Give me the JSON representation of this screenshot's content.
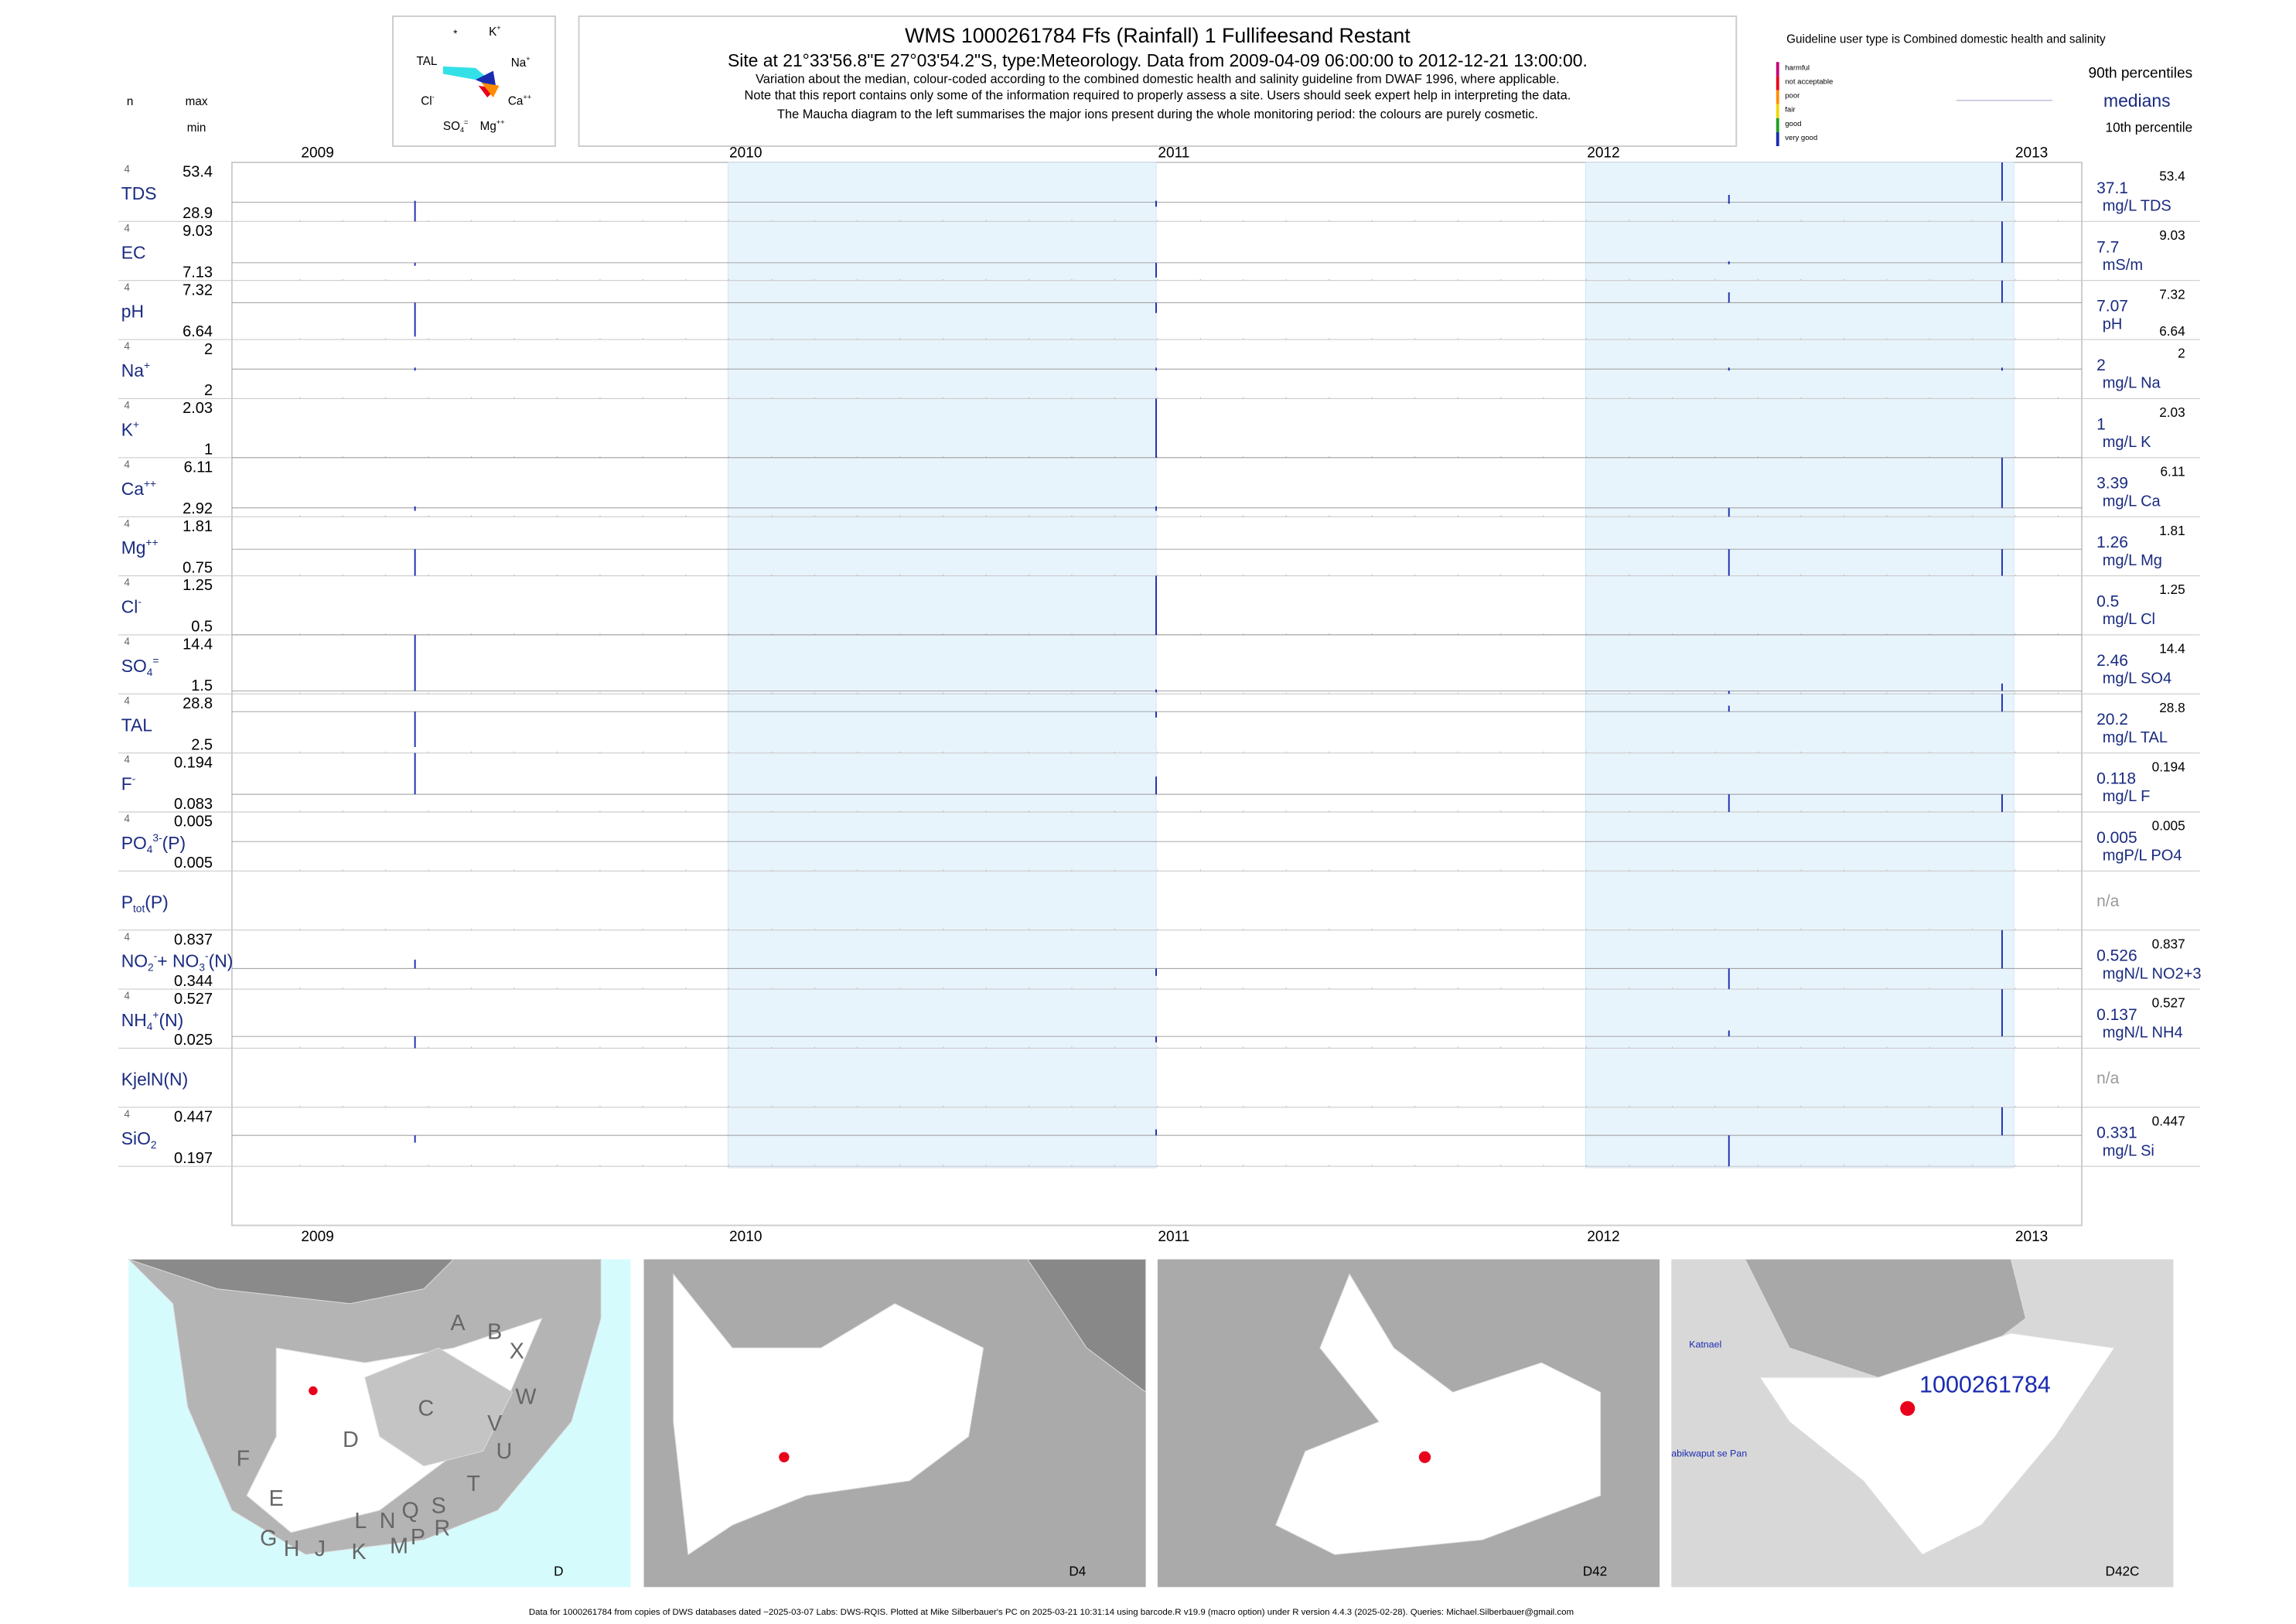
{
  "header": {
    "title": "WMS 1000261784  Ffs (Rainfall) 1 Fullifeesand Restant",
    "subtitle": "Site at 21°33'56.8\"E 27°03'54.2\"S, type:Meteorology.  Data from 2009-04-09 06:00:00 to 2012-12-21 13:00:00.",
    "notes": [
      "Variation about the median,  colour-coded according to the combined domestic health and salinity guideline from DWAF 1996, where applicable.",
      "Note that this report contains only some of the information required to properly assess a site. Users should seek expert help in interpreting the data.",
      "The Maucha diagram to the left summarises the major ions present during the whole monitoring period: the colours are purely cosmetic."
    ]
  },
  "maucha": [
    [
      {
        "text": "*"
      }
    ],
    [
      {
        "text": "K"
      },
      {
        "sup": "+"
      }
    ],
    [
      {
        "text": "TAL"
      }
    ],
    [
      {
        "text": "Na"
      },
      {
        "sup": "+"
      }
    ],
    [
      {
        "text": "Cl"
      },
      {
        "sup": "-"
      }
    ],
    [
      {
        "text": "Ca"
      },
      {
        "sup": "++"
      }
    ],
    [
      {
        "text": "SO"
      },
      {
        "sub": "4"
      },
      {
        "sup": "="
      }
    ],
    [
      {
        "text": "Mg"
      },
      {
        "sup": "++"
      }
    ]
  ],
  "legend": {
    "guideline": "Guideline user type is Combined domestic health and salinity",
    "classes": [
      {
        "label": "harmful",
        "color": "#c8007a"
      },
      {
        "label": "not acceptable",
        "color": "#e8001c"
      },
      {
        "label": "poor",
        "color": "#ff8c00"
      },
      {
        "label": "fair",
        "color": "#f0d800"
      },
      {
        "label": "good",
        "color": "#20a020"
      },
      {
        "label": "very good",
        "color": "#1a2bb0"
      }
    ],
    "upper": "90th percentiles",
    "median": "medians",
    "lower": "10th percentile"
  },
  "columns": {
    "n": "n",
    "max": "max",
    "min": "min"
  },
  "years": [
    2009,
    2010,
    2011,
    2012,
    2013
  ],
  "rows": [
    {
      "name": [
        {
          "text": "TDS"
        }
      ],
      "n": 4,
      "max": 53.4,
      "min": 28.9,
      "median": 37.1,
      "unit": "mg/L TDS"
    },
    {
      "name": [
        {
          "text": "EC"
        }
      ],
      "n": 4,
      "max": 9.03,
      "min": 7.13,
      "median": 7.7,
      "unit": "mS/m"
    },
    {
      "name": [
        {
          "text": "pH"
        }
      ],
      "n": 4,
      "max": 7.32,
      "min": 6.64,
      "median": 7.07,
      "unit": "pH"
    },
    {
      "name": [
        {
          "text": "Na"
        },
        {
          "sup": "+"
        }
      ],
      "n": 4,
      "max": 2,
      "min": 2,
      "median": 2,
      "unit": "mg/L Na"
    },
    {
      "name": [
        {
          "text": "K"
        },
        {
          "sup": "+"
        }
      ],
      "n": 4,
      "max": 2.03,
      "min": 1,
      "median": 1,
      "unit": "mg/L K"
    },
    {
      "name": [
        {
          "text": "Ca"
        },
        {
          "sup": "++"
        }
      ],
      "n": 4,
      "max": 6.11,
      "min": 2.92,
      "median": 3.39,
      "unit": "mg/L Ca"
    },
    {
      "name": [
        {
          "text": "Mg"
        },
        {
          "sup": "++"
        }
      ],
      "n": 4,
      "max": 1.81,
      "min": 0.75,
      "median": 1.26,
      "unit": "mg/L Mg"
    },
    {
      "name": [
        {
          "text": "Cl"
        },
        {
          "sup": "-"
        }
      ],
      "n": 4,
      "max": 1.25,
      "min": 0.5,
      "median": 0.5,
      "unit": "mg/L Cl"
    },
    {
      "name": [
        {
          "text": "SO"
        },
        {
          "sub": "4"
        },
        {
          "sup": "="
        }
      ],
      "n": 4,
      "max": 14.4,
      "min": 1.5,
      "median": 2.46,
      "unit": "mg/L SO4"
    },
    {
      "name": [
        {
          "text": "TAL"
        }
      ],
      "n": 4,
      "max": 28.8,
      "min": 2.5,
      "median": 20.2,
      "unit": "mg/L TAL"
    },
    {
      "name": [
        {
          "text": "F"
        },
        {
          "sup": "-"
        }
      ],
      "n": 4,
      "max": 0.194,
      "min": 0.083,
      "median": 0.118,
      "unit": "mg/L F"
    },
    {
      "name": [
        {
          "text": "PO"
        },
        {
          "sub": "4"
        },
        {
          "sup": "3-"
        },
        {
          "text": "(P)"
        }
      ],
      "n": 4,
      "max": 0.005,
      "min": 0.005,
      "median": 0.005,
      "unit": "mgP/L PO4"
    },
    {
      "name": [
        {
          "text": "P"
        },
        {
          "sub": "tot"
        },
        {
          "text": "(P)"
        }
      ],
      "median": "n/a"
    },
    {
      "name": [
        {
          "text": "NO"
        },
        {
          "sub": "2"
        },
        {
          "sup": "-"
        },
        {
          "text": "+ NO"
        },
        {
          "sub": "3"
        },
        {
          "sup": "-"
        },
        {
          "text": "(N)"
        }
      ],
      "n": 4,
      "max": 0.837,
      "min": 0.344,
      "median": 0.526,
      "unit": "mgN/L NO2+3"
    },
    {
      "name": [
        {
          "text": "NH"
        },
        {
          "sub": "4"
        },
        {
          "sup": "+"
        },
        {
          "text": "(N)"
        }
      ],
      "n": 4,
      "max": 0.527,
      "min": 0.025,
      "median": 0.137,
      "unit": "mgN/L NH4"
    },
    {
      "name": [
        {
          "text": "KjelN(N)"
        }
      ],
      "median": "n/a"
    },
    {
      "name": [
        {
          "text": "SiO"
        },
        {
          "sub": "2"
        }
      ],
      "n": 4,
      "max": 0.447,
      "min": 0.197,
      "median": 0.331,
      "unit": "mg/L Si"
    }
  ],
  "maps": [
    {
      "label": "D",
      "places": [
        "A",
        "B",
        "X",
        "W",
        "C",
        "V",
        "U",
        "D",
        "F",
        "T",
        "E",
        "S",
        "Q",
        "L",
        "N",
        "R",
        "G",
        "H",
        "J",
        "P",
        "M",
        "K"
      ]
    },
    {
      "label": "D4",
      "places": []
    },
    {
      "label": "D42",
      "places": []
    },
    {
      "label": "D42C",
      "places": [
        "1000261784",
        "Katnael",
        "abikwaput se Pan"
      ]
    }
  ],
  "footer": "Data for 1000261784 from copies of DWS databases dated ~2025-03-07 Labs: DWS-RQIS. Plotted at Mike Silberbauer's PC on 2025-03-21 10:31:14 using barcode.R v19.9 (macro option) under R version 4.4.3 (2025-02-28). Queries: Michael.Silberbauer@gmail.com"
}
